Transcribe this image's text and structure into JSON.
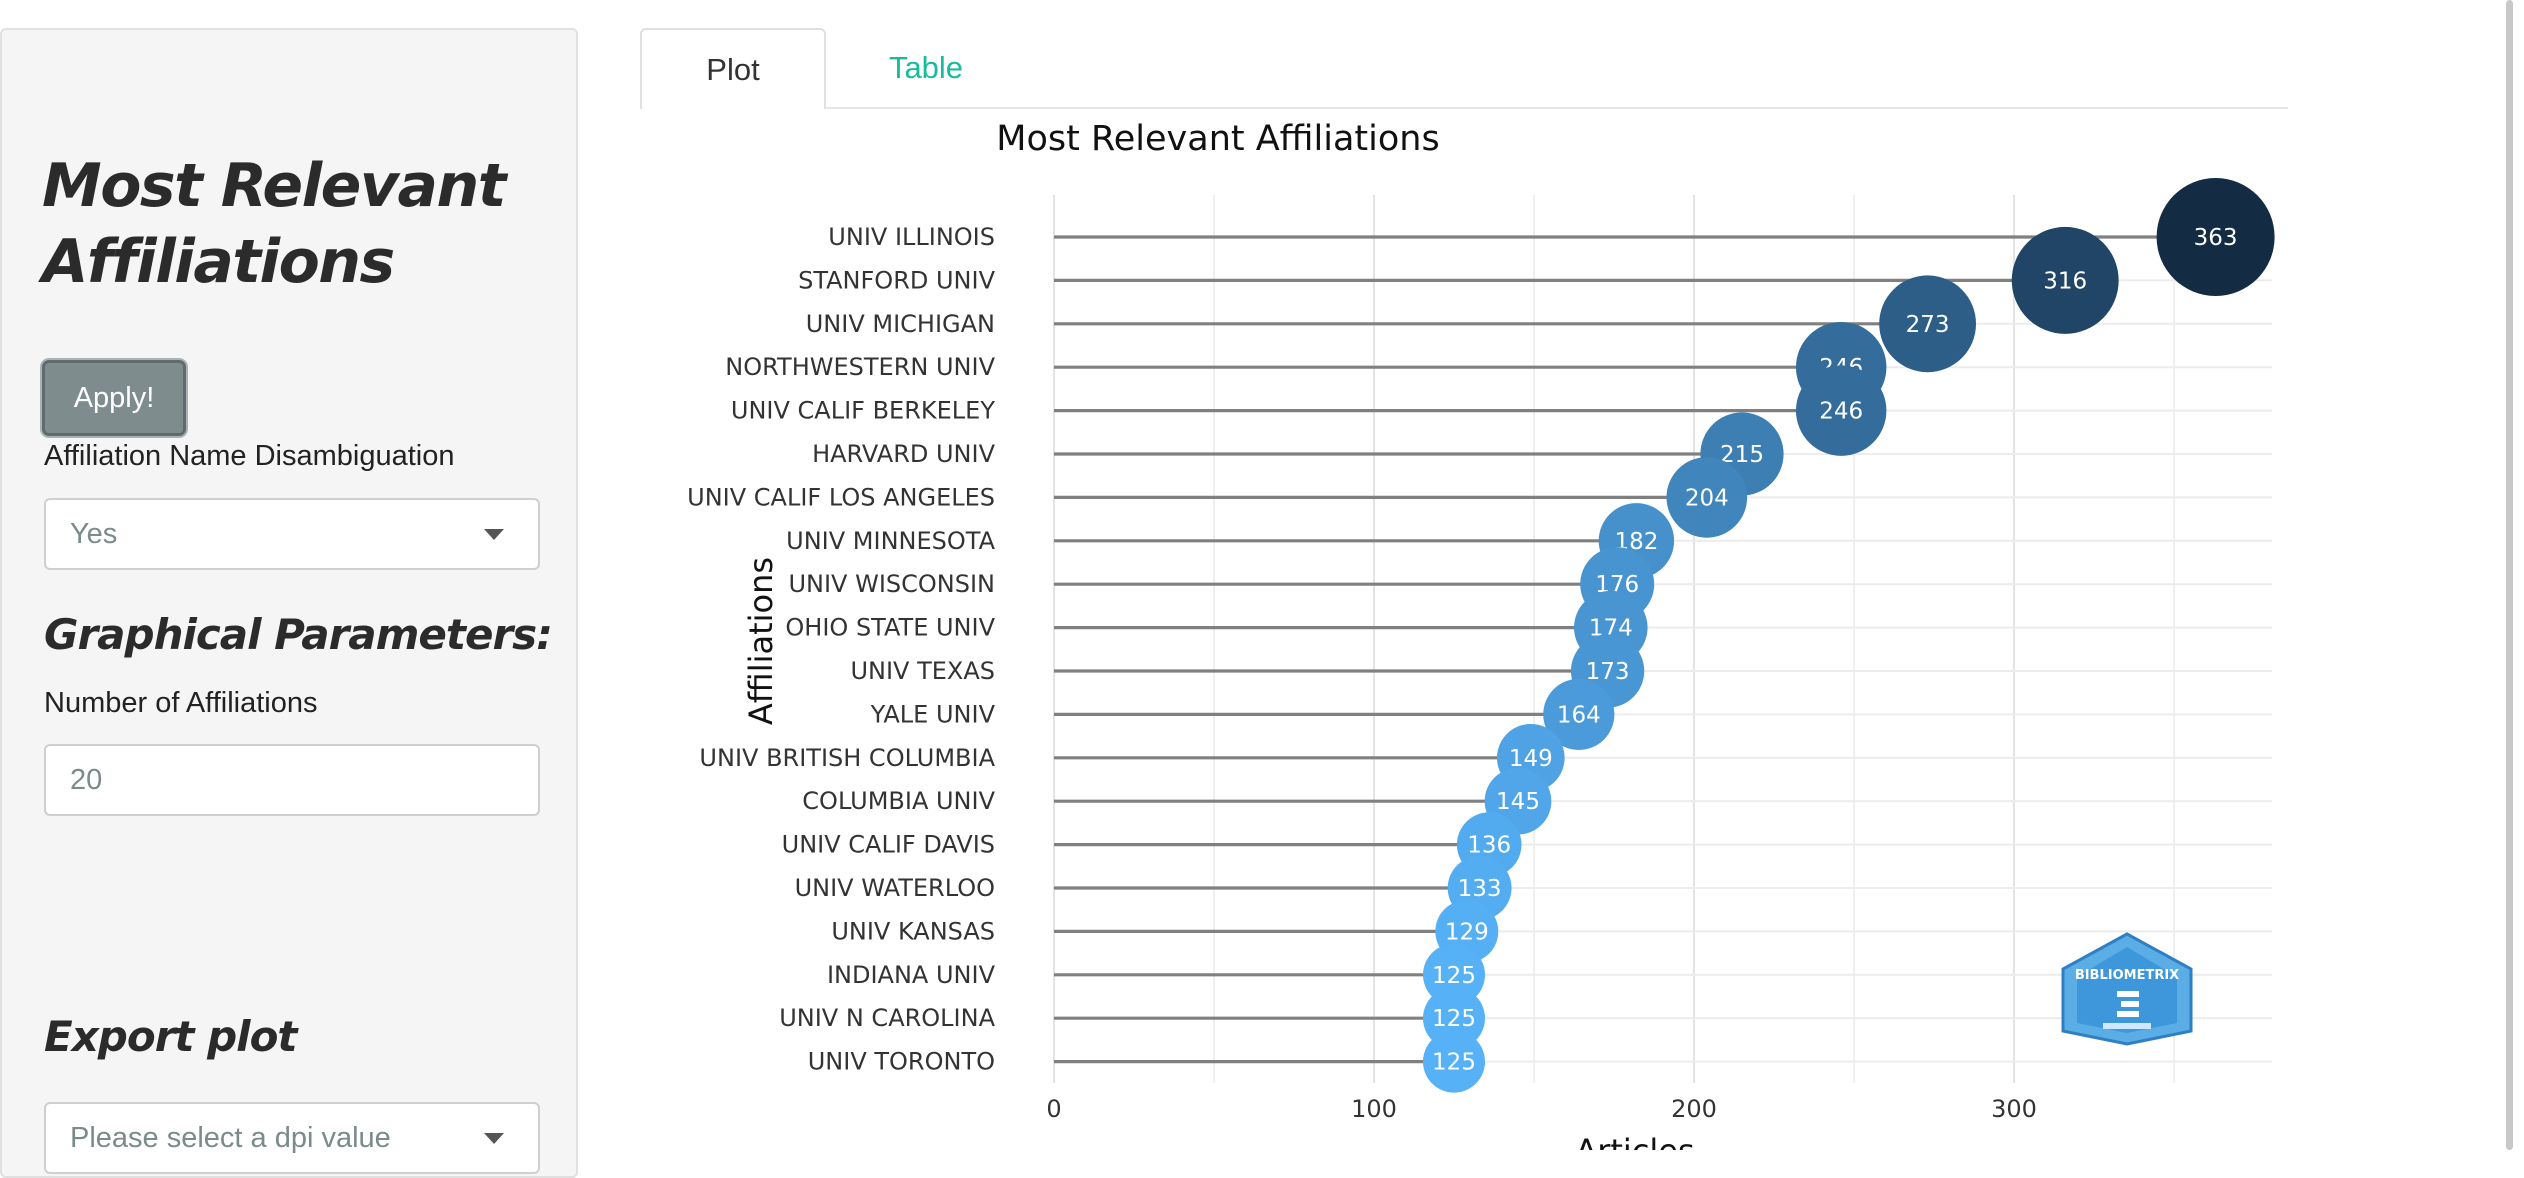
{
  "sidebar": {
    "title": "Most Relevant Affiliations",
    "apply_label": "Apply!",
    "disambiguation_label": "Affiliation Name Disambiguation",
    "disambiguation_value": "Yes",
    "graphical_params_title": "Graphical Parameters:",
    "num_affiliations_label": "Number of Affiliations",
    "num_affiliations_value": "20",
    "export_title": "Export plot",
    "dpi_placeholder": "Please select a dpi value"
  },
  "tabs": [
    {
      "label": "Plot",
      "active": true
    },
    {
      "label": "Table",
      "active": false
    }
  ],
  "colors": {
    "tab_inactive": "#18bc9c",
    "bubble_low": "#56B1F7",
    "bubble_high": "#132B43",
    "segment": "#808080"
  },
  "watermark_text": "BIBLIOMETRIX",
  "chart_data": {
    "type": "scatter",
    "title": "Most Relevant Affiliations",
    "xlabel": "Articles",
    "ylabel": "Affiliations",
    "xlim": [
      0,
      380
    ],
    "xticks": [
      0,
      100,
      200,
      300
    ],
    "grid": true,
    "legend": "none",
    "categories": [
      "UNIV ILLINOIS",
      "STANFORD UNIV",
      "UNIV MICHIGAN",
      "NORTHWESTERN UNIV",
      "UNIV CALIF BERKELEY",
      "HARVARD UNIV",
      "UNIV CALIF LOS ANGELES",
      "UNIV MINNESOTA",
      "UNIV WISCONSIN",
      "OHIO STATE UNIV",
      "UNIV TEXAS",
      "YALE UNIV",
      "UNIV BRITISH COLUMBIA",
      "COLUMBIA UNIV",
      "UNIV CALIF DAVIS",
      "UNIV WATERLOO",
      "UNIV KANSAS",
      "INDIANA UNIV",
      "UNIV N CAROLINA",
      "UNIV TORONTO"
    ],
    "values": [
      363,
      316,
      273,
      246,
      246,
      215,
      204,
      182,
      176,
      174,
      173,
      164,
      149,
      145,
      136,
      133,
      129,
      125,
      125,
      125
    ]
  }
}
